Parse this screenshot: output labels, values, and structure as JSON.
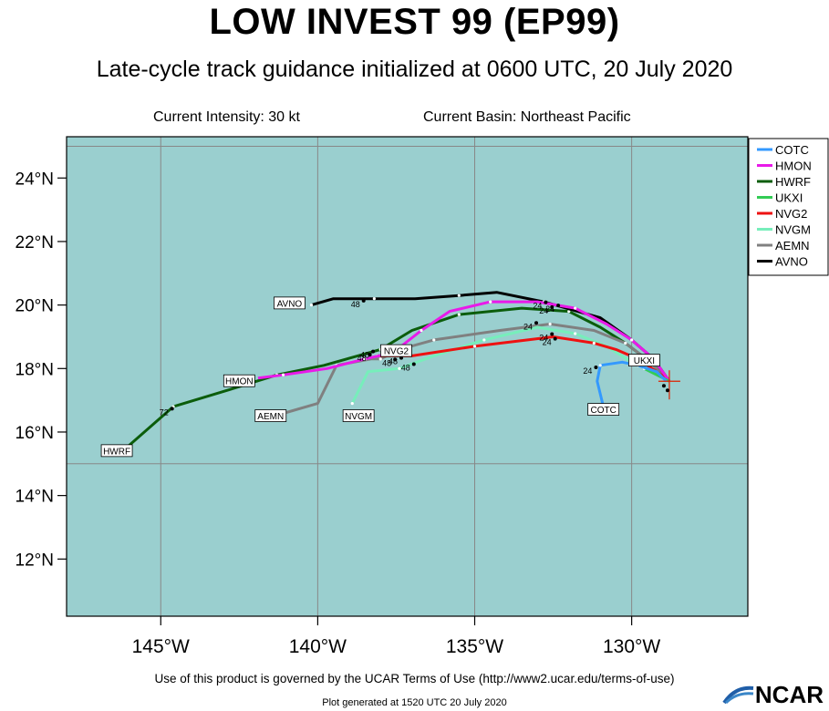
{
  "header": {
    "title": "LOW INVEST 99 (EP99)",
    "subtitle": "Late-cycle track guidance initialized at 0600 UTC, 20 July 2020",
    "intensity": "Current Intensity: 30 kt",
    "basin": "Current Basin: Northeast Pacific"
  },
  "colors": {
    "ocean": "#9acfcf",
    "COTC": "#3399ff",
    "HMON": "#e91ae9",
    "HWRF": "#0b5d0b",
    "UKXI": "#33cc55",
    "NVG2": "#ee1111",
    "NVGM": "#77eebb",
    "AEMN": "#808080",
    "AVNO": "#000000"
  },
  "legend": [
    "COTC",
    "HMON",
    "HWRF",
    "UKXI",
    "NVG2",
    "NVGM",
    "AEMN",
    "AVNO"
  ],
  "chart_data": {
    "type": "map-track",
    "xlim": [
      -148,
      -126.3
    ],
    "ylim": [
      10.2,
      25.3
    ],
    "xticks": [
      -145,
      -140,
      -135,
      -130
    ],
    "xtick_labels": [
      "145°W",
      "140°W",
      "135°W",
      "130°W"
    ],
    "yticks": [
      12,
      14,
      16,
      18,
      20,
      22,
      24
    ],
    "ytick_labels": [
      "12°N",
      "14°N",
      "16°N",
      "18°N",
      "20°N",
      "22°N",
      "24°N"
    ],
    "storm_position": [
      -128.8,
      17.6
    ],
    "series": [
      {
        "name": "COTC",
        "points": [
          [
            -128.9,
            17.6
          ],
          [
            -129.2,
            17.9
          ],
          [
            -129.8,
            18.1
          ],
          [
            -130.3,
            18.2
          ],
          [
            -131.0,
            18.1
          ],
          [
            -131.1,
            17.6
          ],
          [
            -130.9,
            16.8
          ]
        ],
        "end_label": "COTC",
        "end_lonlat": [
          -130.9,
          16.7
        ],
        "hour_marks": [
          {
            "text": "24",
            "at": [
              -131.4,
              17.95
            ]
          }
        ]
      },
      {
        "name": "HMON",
        "points": [
          [
            -128.8,
            17.6
          ],
          [
            -129.3,
            18.3
          ],
          [
            -130.0,
            18.9
          ],
          [
            -130.8,
            19.4
          ],
          [
            -131.8,
            19.9
          ],
          [
            -133.0,
            20.1
          ],
          [
            -134.5,
            20.1
          ],
          [
            -135.8,
            19.8
          ],
          [
            -136.7,
            19.2
          ],
          [
            -137.6,
            18.5
          ],
          [
            -138.5,
            18.3
          ],
          [
            -139.7,
            18.0
          ],
          [
            -141.1,
            17.8
          ],
          [
            -141.9,
            17.7
          ]
        ],
        "end_label": "HMON",
        "end_lonlat": [
          -142.5,
          17.6
        ],
        "hour_marks": [
          {
            "text": "24",
            "at": [
              -132.6,
              19.9
            ]
          },
          {
            "text": "48",
            "at": [
              -138.5,
              18.45
            ]
          }
        ]
      },
      {
        "name": "HWRF",
        "points": [
          [
            -128.8,
            17.6
          ],
          [
            -129.4,
            18.2
          ],
          [
            -130.2,
            18.8
          ],
          [
            -131.0,
            19.3
          ],
          [
            -132.0,
            19.8
          ],
          [
            -133.5,
            19.9
          ],
          [
            -135.5,
            19.7
          ],
          [
            -137.0,
            19.2
          ],
          [
            -138.0,
            18.6
          ],
          [
            -139.8,
            18.1
          ],
          [
            -141.3,
            17.8
          ],
          [
            -142.6,
            17.4
          ],
          [
            -144.6,
            16.8
          ],
          [
            -146.1,
            15.5
          ]
        ],
        "end_label": "HWRF",
        "end_lonlat": [
          -146.4,
          15.4
        ],
        "hour_marks": [
          {
            "text": "24",
            "at": [
              -132.8,
              19.85
            ]
          },
          {
            "text": "48",
            "at": [
              -138.6,
              18.35
            ]
          },
          {
            "text": "72",
            "at": [
              -144.9,
              16.65
            ]
          }
        ]
      },
      {
        "name": "UKXI",
        "points": [
          [
            -128.8,
            17.6
          ],
          [
            -129.2,
            17.8
          ],
          [
            -129.6,
            18.0
          ]
        ],
        "end_label": "UKXI",
        "end_lonlat": [
          -129.6,
          18.25
        ],
        "hour_marks": []
      },
      {
        "name": "NVG2",
        "points": [
          [
            -128.8,
            17.6
          ],
          [
            -129.2,
            17.9
          ],
          [
            -129.8,
            18.3
          ],
          [
            -130.5,
            18.6
          ],
          [
            -131.2,
            18.8
          ],
          [
            -132.5,
            19.0
          ],
          [
            -135.0,
            18.7
          ],
          [
            -137.0,
            18.4
          ],
          [
            -138.1,
            18.4
          ]
        ],
        "end_label": "NVG2",
        "end_lonlat": [
          -137.5,
          18.55
        ],
        "hour_marks": [
          {
            "text": "24",
            "at": [
              -132.7,
              18.85
            ]
          },
          {
            "text": "48",
            "at": [
              -137.6,
              18.25
            ]
          }
        ]
      },
      {
        "name": "NVGM",
        "points": [
          [
            -128.8,
            17.6
          ],
          [
            -129.3,
            17.9
          ],
          [
            -130.0,
            18.2
          ],
          [
            -130.8,
            18.7
          ],
          [
            -131.8,
            19.1
          ],
          [
            -133.0,
            19.3
          ],
          [
            -134.7,
            18.9
          ],
          [
            -136.3,
            18.4
          ],
          [
            -137.4,
            18.0
          ],
          [
            -138.4,
            17.9
          ],
          [
            -138.9,
            16.9
          ]
        ],
        "end_label": "NVGM",
        "end_lonlat": [
          -138.7,
          16.5
        ],
        "hour_marks": [
          {
            "text": "24",
            "at": [
              -132.8,
              19.0
            ]
          },
          {
            "text": "48",
            "at": [
              -137.2,
              18.05
            ]
          }
        ]
      },
      {
        "name": "AEMN",
        "points": [
          [
            -128.8,
            17.6
          ],
          [
            -129.4,
            18.2
          ],
          [
            -130.2,
            18.8
          ],
          [
            -131.2,
            19.2
          ],
          [
            -132.6,
            19.4
          ],
          [
            -134.2,
            19.2
          ],
          [
            -136.3,
            18.9
          ],
          [
            -137.4,
            18.6
          ],
          [
            -138.0,
            18.3
          ],
          [
            -138.3,
            18.3
          ],
          [
            -139.4,
            18.1
          ],
          [
            -140.0,
            16.9
          ],
          [
            -141.4,
            16.5
          ]
        ],
        "end_label": "AEMN",
        "end_lonlat": [
          -141.5,
          16.5
        ],
        "hour_marks": [
          {
            "text": "24",
            "at": [
              -133.3,
              19.35
            ]
          },
          {
            "text": "48",
            "at": [
              -137.8,
              18.2
            ]
          }
        ]
      },
      {
        "name": "AVNO",
        "points": [
          [
            -128.8,
            17.6
          ],
          [
            -129.3,
            18.3
          ],
          [
            -130.0,
            18.9
          ],
          [
            -131.0,
            19.6
          ],
          [
            -132.8,
            20.1
          ],
          [
            -134.3,
            20.4
          ],
          [
            -135.5,
            20.3
          ],
          [
            -136.9,
            20.2
          ],
          [
            -138.2,
            20.2
          ],
          [
            -139.5,
            20.2
          ],
          [
            -140.2,
            20.0
          ]
        ],
        "end_label": "AVNO",
        "end_lonlat": [
          -140.9,
          20.05
        ],
        "hour_marks": [
          {
            "text": "24",
            "at": [
              -133.0,
              20.0
            ]
          },
          {
            "text": "48",
            "at": [
              -138.8,
              20.05
            ]
          }
        ]
      }
    ]
  },
  "footer": {
    "terms": "Use of this product is governed by the UCAR Terms of Use (http://www2.ucar.edu/terms-of-use)",
    "generated": "Plot generated at 1520 UTC   20 July 2020",
    "logo": "NCAR"
  }
}
